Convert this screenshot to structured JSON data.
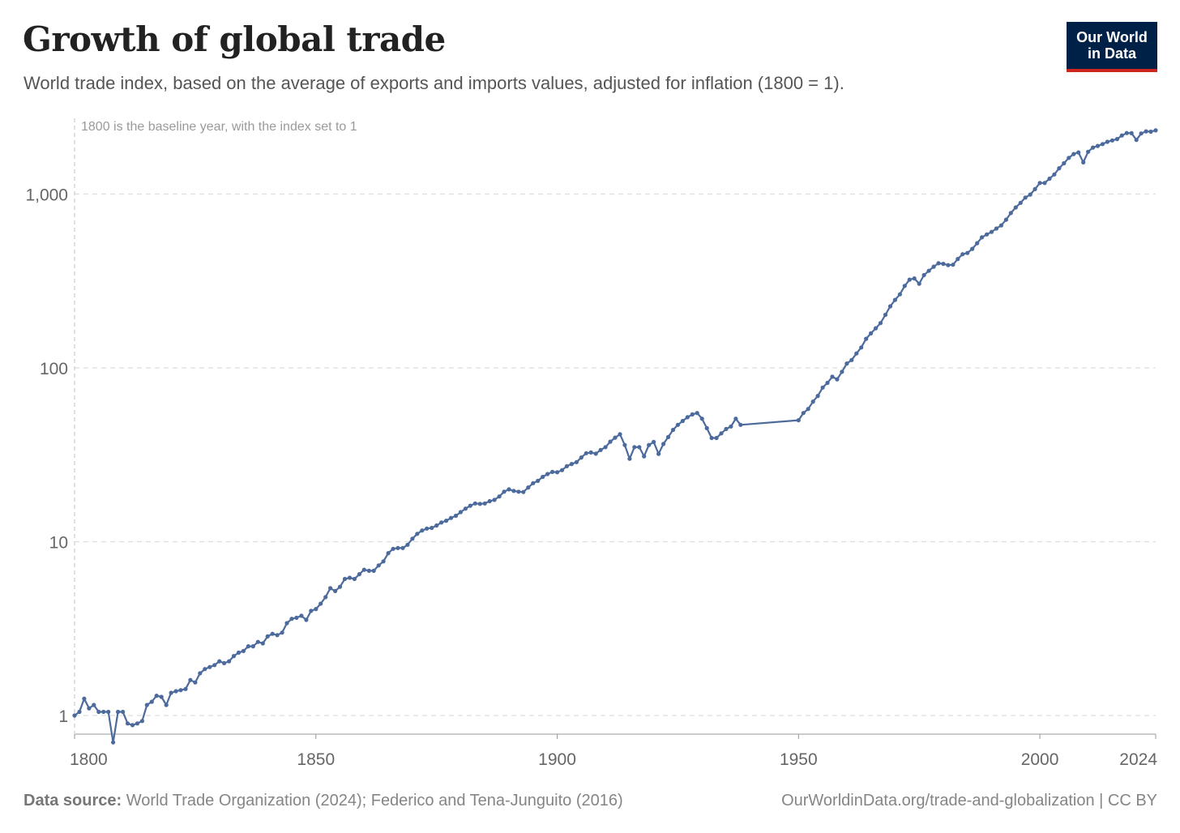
{
  "header": {
    "title": "Growth of global trade",
    "subtitle": "World trade index, based on the average of exports and imports values, adjusted for inflation (1800 = 1)."
  },
  "logo": {
    "line1": "Our World",
    "line2": "in Data",
    "bg_color": "#002147",
    "accent_color": "#ce261e"
  },
  "footer": {
    "source_label": "Data source:",
    "source_text": "World Trade Organization (2024); Federico and Tena-Junguito (2016)",
    "url_license": "OurWorldinData.org/trade-and-globalization | CC BY"
  },
  "chart_data": {
    "type": "line",
    "title": "Growth of global trade",
    "subtitle": "World trade index, based on the average of exports and imports values, adjusted for inflation (1800 = 1).",
    "annotation": "1800 is the baseline year, with the index set to 1",
    "xlabel": "",
    "ylabel": "",
    "y_scale": "log",
    "xlim": [
      1800,
      2024
    ],
    "ylim": [
      0.7,
      2400
    ],
    "x_ticks": [
      1800,
      1850,
      1900,
      1950,
      2000,
      2024
    ],
    "x_tick_labels": [
      "1800",
      "1850",
      "1900",
      "1950",
      "2000",
      "2024"
    ],
    "y_ticks": [
      1,
      10,
      100,
      1000
    ],
    "y_tick_labels": [
      "1",
      "10",
      "100",
      "1,000"
    ],
    "grid": true,
    "line_color": "#4c6a9c",
    "series": [
      {
        "x": [
          1800,
          1801,
          1802,
          1803,
          1804,
          1805,
          1806,
          1807,
          1808,
          1809,
          1810,
          1811,
          1812,
          1813,
          1814,
          1815,
          1816,
          1817,
          1818,
          1819,
          1820,
          1821,
          1822,
          1823,
          1824,
          1825,
          1826,
          1827,
          1828,
          1829,
          1830,
          1831,
          1832,
          1833,
          1834,
          1835,
          1836,
          1837,
          1838,
          1839,
          1840,
          1841,
          1842,
          1843,
          1844,
          1845,
          1846,
          1847,
          1848,
          1849,
          1850,
          1851,
          1852,
          1853,
          1854,
          1855,
          1856,
          1857,
          1858,
          1859,
          1860,
          1861,
          1862,
          1863,
          1864,
          1865,
          1866,
          1867,
          1868,
          1869,
          1870,
          1871,
          1872,
          1873,
          1874,
          1875,
          1876,
          1877,
          1878,
          1879,
          1880,
          1881,
          1882,
          1883,
          1884,
          1885,
          1886,
          1887,
          1888,
          1889,
          1890,
          1891,
          1892,
          1893,
          1894,
          1895,
          1896,
          1897,
          1898,
          1899,
          1900,
          1901,
          1902,
          1903,
          1904,
          1905,
          1906,
          1907,
          1908,
          1909,
          1910,
          1911,
          1912,
          1913,
          1914,
          1915,
          1916,
          1917,
          1918,
          1919,
          1920,
          1921,
          1922,
          1923,
          1924,
          1925,
          1926,
          1927,
          1928,
          1929,
          1930,
          1931,
          1932,
          1933,
          1934,
          1935,
          1936,
          1937,
          1938,
          1950,
          1951,
          1952,
          1953,
          1954,
          1955,
          1956,
          1957,
          1958,
          1959,
          1960,
          1961,
          1962,
          1963,
          1964,
          1965,
          1966,
          1967,
          1968,
          1969,
          1970,
          1971,
          1972,
          1973,
          1974,
          1975,
          1976,
          1977,
          1978,
          1979,
          1980,
          1981,
          1982,
          1983,
          1984,
          1985,
          1986,
          1987,
          1988,
          1989,
          1990,
          1991,
          1992,
          1993,
          1994,
          1995,
          1996,
          1997,
          1998,
          1999,
          2000,
          2001,
          2002,
          2003,
          2004,
          2005,
          2006,
          2007,
          2008,
          2009,
          2010,
          2011,
          2012,
          2013,
          2014,
          2015,
          2016,
          2017,
          2018,
          2019,
          2020,
          2021,
          2022,
          2023,
          2024
        ],
        "y": [
          1,
          1.05,
          1.25,
          1.1,
          1.15,
          1.05,
          1.05,
          1.05,
          0.7,
          1.05,
          1.05,
          0.9,
          0.88,
          0.9,
          0.93,
          1.15,
          1.2,
          1.3,
          1.28,
          1.15,
          1.35,
          1.38,
          1.4,
          1.42,
          1.6,
          1.55,
          1.75,
          1.85,
          1.9,
          1.95,
          2.05,
          2,
          2.05,
          2.2,
          2.3,
          2.35,
          2.5,
          2.5,
          2.65,
          2.6,
          2.85,
          2.95,
          2.9,
          3.0,
          3.4,
          3.6,
          3.65,
          3.75,
          3.55,
          4,
          4.1,
          4.4,
          4.8,
          5.4,
          5.2,
          5.5,
          6.1,
          6.2,
          6.1,
          6.5,
          6.9,
          6.8,
          6.8,
          7.3,
          7.7,
          8.6,
          9.1,
          9.2,
          9.2,
          9.6,
          10.4,
          11.1,
          11.6,
          11.9,
          12,
          12.4,
          12.9,
          13.2,
          13.7,
          14.1,
          14.8,
          15.5,
          16.1,
          16.6,
          16.5,
          16.6,
          17.1,
          17.4,
          18.2,
          19.4,
          20,
          19.6,
          19.4,
          19.3,
          20.5,
          21.7,
          22.4,
          23.6,
          24.5,
          25.2,
          25.1,
          25.8,
          27.2,
          28,
          28.7,
          30.5,
          32.3,
          32.6,
          32.1,
          33.7,
          35,
          37.6,
          39.7,
          41.5,
          36,
          30,
          35,
          35,
          31,
          36,
          37.5,
          32,
          36.5,
          40,
          44,
          47,
          49.5,
          52,
          54,
          55,
          51,
          45,
          39.5,
          39.5,
          42,
          44.5,
          46,
          51,
          47,
          50,
          55,
          58,
          64,
          69,
          77,
          82,
          89,
          86,
          95,
          106,
          111,
          121,
          131,
          147,
          158,
          169,
          181,
          202,
          226,
          246,
          265,
          296,
          322,
          327,
          305,
          342,
          362,
          382,
          400,
          397,
          390,
          392,
          423,
          451,
          458,
          484,
          522,
          564,
          586,
          606,
          634,
          660,
          712,
          778,
          838,
          891,
          955,
          994,
          1068,
          1159,
          1158,
          1226,
          1296,
          1409,
          1504,
          1616,
          1699,
          1737,
          1521,
          1751,
          1851,
          1893,
          1940,
          1999,
          2035,
          2073,
          2174,
          2244,
          2240,
          2048,
          2233,
          2296,
          2285,
          2324
        ]
      }
    ]
  }
}
